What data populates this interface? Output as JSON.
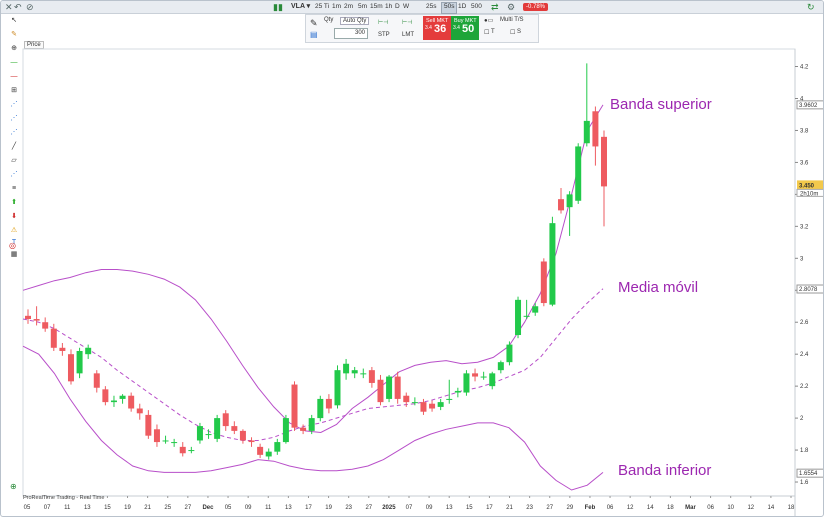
{
  "toolbar": {
    "ticker": "VLA ▾",
    "timeframes": [
      "25 Ti",
      "1m",
      "2m",
      "5m",
      "15m",
      "1h",
      "D",
      "W",
      "25s",
      "50s",
      "1D",
      "500"
    ],
    "selected_timeframe": "50s",
    "change": "-0.78%"
  },
  "order_panel": {
    "qty_label": "Qty",
    "qty_mode": "Auto Qty",
    "qty_value": "300",
    "stp_label": "STP",
    "lmt_label": "LMT",
    "sell": {
      "label": "Sell MKT",
      "prefix": "3.4",
      "big": "36"
    },
    "buy": {
      "label": "Buy MKT",
      "prefix": "3.4",
      "big": "50"
    },
    "multi_label": "Multi T/S",
    "t_label": "T",
    "s_label": "S"
  },
  "price_tag": "Price",
  "footer": "ProRealTime Trading - Real Time",
  "annotations": {
    "upper": "Banda superior",
    "middle": "Media móvil",
    "lower": "Banda inferior"
  },
  "colors": {
    "up": "#22c94a",
    "down": "#ee5b60",
    "band": "#b84fc9",
    "price_badge": "#f3c94b"
  },
  "chart_data": {
    "type": "candlestick",
    "y_ticks": [
      1.6,
      1.8,
      2,
      2.2,
      2.4,
      2.6,
      2.8,
      3,
      3.2,
      3.4,
      3.6,
      3.8,
      4,
      4.2
    ],
    "y_tick_labels": [
      "1.6",
      "1.8",
      "2",
      "2.2",
      "2.4",
      "2.6",
      "2.8",
      "3",
      "3.2",
      "3.4",
      "3.6",
      "3.8",
      "4",
      "4.2"
    ],
    "ylim": [
      1.5,
      4.3
    ],
    "price_labels": {
      "upper": "3.9602",
      "current": "3.450",
      "countdown": "2h10m",
      "middle": "2.8078",
      "lower": "1.6554"
    },
    "x_labels": [
      "05",
      "07",
      "11",
      "13",
      "15",
      "19",
      "21",
      "25",
      "27",
      "Dec",
      "05",
      "09",
      "11",
      "13",
      "17",
      "19",
      "23",
      "27",
      "2025",
      "07",
      "09",
      "13",
      "15",
      "17",
      "21",
      "23",
      "27",
      "29",
      "Feb",
      "06",
      "12",
      "14",
      "18",
      "Mar",
      "06",
      "10",
      "12",
      "14",
      "18"
    ],
    "candles": [
      [
        2.64,
        2.62,
        2.68,
        2.59
      ],
      [
        2.62,
        2.61,
        2.7,
        2.58
      ],
      [
        2.6,
        2.56,
        2.63,
        2.54
      ],
      [
        2.56,
        2.44,
        2.59,
        2.42
      ],
      [
        2.44,
        2.42,
        2.47,
        2.39
      ],
      [
        2.4,
        2.23,
        2.43,
        2.21
      ],
      [
        2.28,
        2.42,
        2.44,
        2.25
      ],
      [
        2.4,
        2.44,
        2.46,
        2.37
      ],
      [
        2.28,
        2.19,
        2.3,
        2.16
      ],
      [
        2.18,
        2.1,
        2.2,
        2.08
      ],
      [
        2.1,
        2.11,
        2.14,
        2.07
      ],
      [
        2.12,
        2.14,
        2.15,
        2.09
      ],
      [
        2.14,
        2.06,
        2.16,
        2.04
      ],
      [
        2.06,
        2.03,
        2.09,
        1.99
      ],
      [
        2.02,
        1.89,
        2.05,
        1.87
      ],
      [
        1.93,
        1.85,
        1.96,
        1.82
      ],
      [
        1.86,
        1.86,
        1.89,
        1.84
      ],
      [
        1.85,
        1.85,
        1.87,
        1.82
      ],
      [
        1.82,
        1.78,
        1.85,
        1.76
      ],
      [
        1.8,
        1.8,
        1.82,
        1.78
      ],
      [
        1.86,
        1.95,
        1.97,
        1.84
      ],
      [
        1.9,
        1.9,
        1.93,
        1.87
      ],
      [
        1.87,
        2.0,
        2.02,
        1.85
      ],
      [
        2.03,
        1.95,
        2.05,
        1.92
      ],
      [
        1.95,
        1.92,
        1.98,
        1.9
      ],
      [
        1.92,
        1.86,
        1.93,
        1.84
      ],
      [
        1.86,
        1.85,
        1.88,
        1.82
      ],
      [
        1.82,
        1.77,
        1.84,
        1.75
      ],
      [
        1.76,
        1.79,
        1.81,
        1.74
      ],
      [
        1.79,
        1.85,
        1.87,
        1.77
      ],
      [
        1.85,
        2.0,
        2.02,
        1.84
      ],
      [
        2.21,
        1.94,
        2.23,
        1.92
      ],
      [
        1.94,
        1.92,
        1.96,
        1.9
      ],
      [
        1.92,
        2.0,
        2.02,
        1.9
      ],
      [
        2.0,
        2.12,
        2.14,
        1.98
      ],
      [
        2.12,
        2.06,
        2.15,
        2.03
      ],
      [
        2.08,
        2.3,
        2.33,
        2.06
      ],
      [
        2.28,
        2.34,
        2.37,
        2.24
      ],
      [
        2.28,
        2.3,
        2.32,
        2.25
      ],
      [
        2.28,
        2.28,
        2.31,
        2.25
      ],
      [
        2.3,
        2.22,
        2.32,
        2.19
      ],
      [
        2.24,
        2.1,
        2.27,
        2.08
      ],
      [
        2.12,
        2.26,
        2.27,
        2.1
      ],
      [
        2.26,
        2.12,
        2.29,
        2.09
      ],
      [
        2.14,
        2.1,
        2.16,
        2.07
      ],
      [
        2.1,
        2.1,
        2.13,
        2.08
      ],
      [
        2.1,
        2.04,
        2.12,
        2.02
      ],
      [
        2.09,
        2.06,
        2.11,
        2.04
      ],
      [
        2.07,
        2.1,
        2.12,
        2.05
      ],
      [
        2.12,
        2.12,
        2.24,
        2.09
      ],
      [
        2.16,
        2.17,
        2.19,
        2.13
      ],
      [
        2.16,
        2.28,
        2.3,
        2.14
      ],
      [
        2.28,
        2.26,
        2.31,
        2.23
      ],
      [
        2.26,
        2.26,
        2.29,
        2.24
      ],
      [
        2.2,
        2.28,
        2.29,
        2.18
      ],
      [
        2.3,
        2.35,
        2.36,
        2.28
      ],
      [
        2.35,
        2.46,
        2.48,
        2.33
      ],
      [
        2.52,
        2.74,
        2.76,
        2.5
      ],
      [
        2.64,
        2.64,
        2.74,
        2.62
      ],
      [
        2.66,
        2.7,
        2.72,
        2.64
      ],
      [
        2.98,
        2.72,
        3.0,
        2.7
      ],
      [
        2.71,
        3.22,
        3.26,
        2.7
      ],
      [
        3.37,
        3.3,
        3.44,
        3.28
      ],
      [
        3.32,
        3.4,
        3.42,
        3.14
      ],
      [
        3.36,
        3.7,
        3.72,
        3.34
      ],
      [
        3.72,
        3.86,
        4.22,
        3.7
      ],
      [
        3.92,
        3.7,
        3.95,
        3.58
      ],
      [
        3.76,
        3.45,
        3.8,
        3.2
      ]
    ],
    "upper_band": [
      2.8,
      2.83,
      2.86,
      2.88,
      2.91,
      2.93,
      2.93,
      2.92,
      2.9,
      2.87,
      2.82,
      2.74,
      2.62,
      2.48,
      2.33,
      2.19,
      2.07,
      1.97,
      1.92,
      1.91,
      1.96,
      2.06,
      2.13,
      2.21,
      2.29,
      2.33,
      2.35,
      2.36,
      2.34,
      2.35,
      2.38,
      2.45,
      2.6,
      2.78,
      3.03,
      3.4,
      3.8,
      3.96
    ],
    "middle_band": [
      2.62,
      2.6,
      2.56,
      2.5,
      2.44,
      2.38,
      2.3,
      2.23,
      2.16,
      2.09,
      2.02,
      1.96,
      1.91,
      1.88,
      1.86,
      1.86,
      1.88,
      1.92,
      1.95,
      1.97,
      2.0,
      2.03,
      2.06,
      2.07,
      2.08,
      2.09,
      2.11,
      2.14,
      2.17,
      2.19,
      2.22,
      2.26,
      2.3,
      2.38,
      2.5,
      2.62,
      2.72,
      2.81
    ],
    "lower_band": [
      2.45,
      2.4,
      2.28,
      2.12,
      1.98,
      1.86,
      1.77,
      1.7,
      1.67,
      1.66,
      1.66,
      1.66,
      1.67,
      1.69,
      1.71,
      1.74,
      1.73,
      1.7,
      1.68,
      1.67,
      1.67,
      1.68,
      1.7,
      1.74,
      1.8,
      1.86,
      1.9,
      1.93,
      1.95,
      1.97,
      1.97,
      1.94,
      1.85,
      1.7,
      1.61,
      1.55,
      1.58,
      1.66
    ]
  }
}
